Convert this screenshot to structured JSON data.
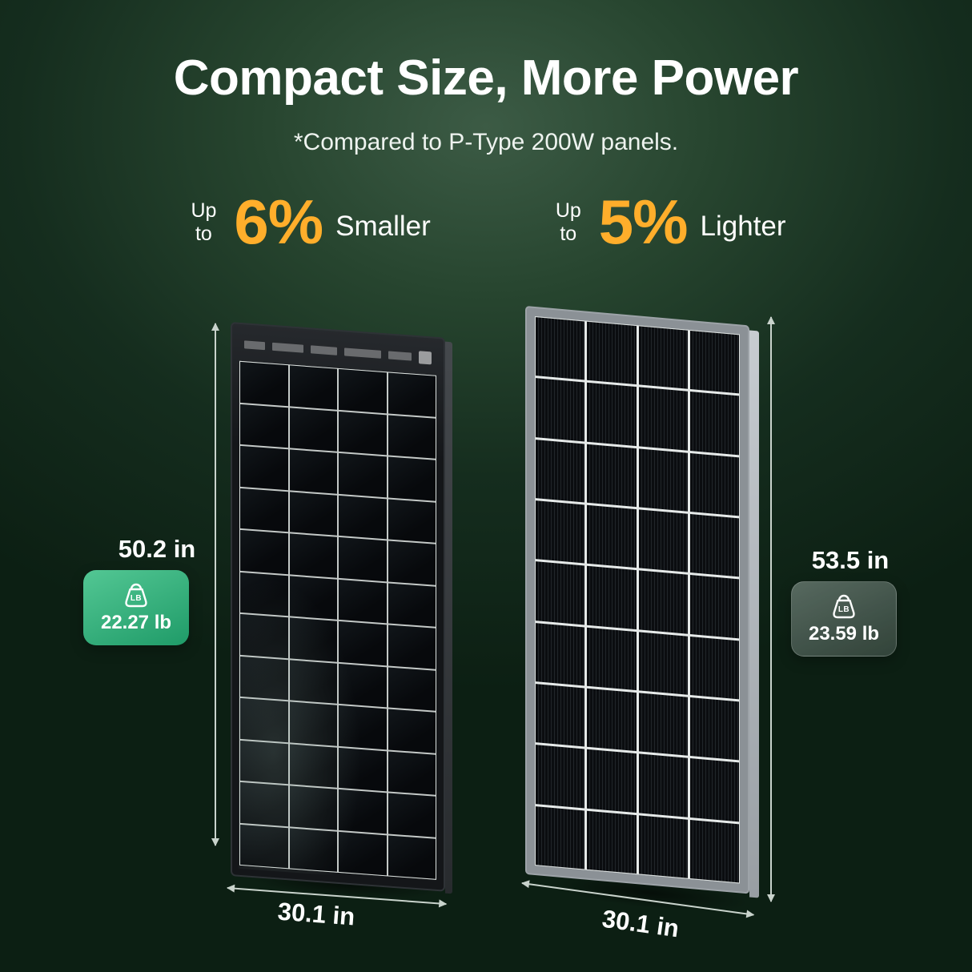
{
  "page": {
    "title": "Compact Size, More Power",
    "subtitle": "*Compared to P-Type 200W panels."
  },
  "stats": {
    "smaller": {
      "prefix": "Up to",
      "value": "6%",
      "label": "Smaller"
    },
    "lighter": {
      "prefix": "Up to",
      "value": "5%",
      "label": "Lighter"
    }
  },
  "left_panel": {
    "height": "50.2 in",
    "width": "30.1 in",
    "weight": "22.27 lb",
    "weight_icon_label": "LB"
  },
  "right_panel": {
    "height": "53.5 in",
    "width": "30.1 in",
    "weight": "23.59 lb",
    "weight_icon_label": "LB"
  },
  "colors": {
    "accent_yellow": "#FFAE2B",
    "badge_green": "#2FB57E",
    "background_green": "#27452F"
  }
}
